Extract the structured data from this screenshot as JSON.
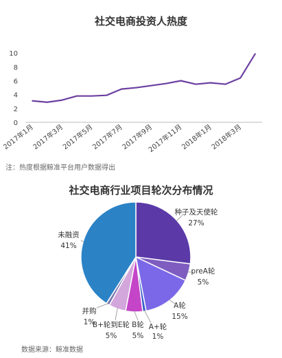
{
  "chart_data": [
    {
      "type": "line",
      "title": "社交电商投资人热度",
      "x": [
        "2017年1月",
        "2017年2月",
        "2017年3月",
        "2017年4月",
        "2017年5月",
        "2017年6月",
        "2017年7月",
        "2017年8月",
        "2017年9月",
        "2017年10月",
        "2017年11月",
        "2017年12月",
        "2018年1月",
        "2018年2月",
        "2018年3月",
        "2018年4月"
      ],
      "x_tick_labels": [
        "2017年1月",
        "2017年3月",
        "2017年5月",
        "2017年7月",
        "2017年9月",
        "2017年11月",
        "2018年1月",
        "2018年3月"
      ],
      "values": [
        3.1,
        2.9,
        3.2,
        3.8,
        3.8,
        3.9,
        4.8,
        5.0,
        5.3,
        5.6,
        6.0,
        5.5,
        5.7,
        5.5,
        6.4,
        9.9
      ],
      "yticks": [
        0,
        2,
        4,
        6,
        8,
        10
      ],
      "ylim": [
        0,
        12
      ],
      "grid": false,
      "line_color": "#6b3fa0",
      "note": "注：热度根据鲸准平台用户数据得出"
    },
    {
      "type": "pie",
      "title": "社交电商行业项目轮次分布情况",
      "slices": [
        {
          "label": "种子及天使轮",
          "percent": "27%",
          "value": 27,
          "color": "#5b3aa8"
        },
        {
          "label": "preA轮",
          "percent": "5%",
          "value": 5,
          "color": "#7e5cc0"
        },
        {
          "label": "A轮",
          "percent": "15%",
          "value": 15,
          "color": "#7b68e8"
        },
        {
          "label": "A+轮",
          "percent": "1%",
          "value": 1,
          "color": "#3a5fcd"
        },
        {
          "label": "B轮",
          "percent": "5%",
          "value": 5,
          "color": "#c445c8"
        },
        {
          "label": "B+轮到E轮",
          "percent": "5%",
          "value": 5,
          "color": "#d3a6dc"
        },
        {
          "label": "并购",
          "percent": "1%",
          "value": 1,
          "color": "#7a7ab0"
        },
        {
          "label": "未融资",
          "percent": "41%",
          "value": 41,
          "color": "#2b83c6"
        }
      ],
      "source": "数据来源：鲸准数据"
    }
  ]
}
